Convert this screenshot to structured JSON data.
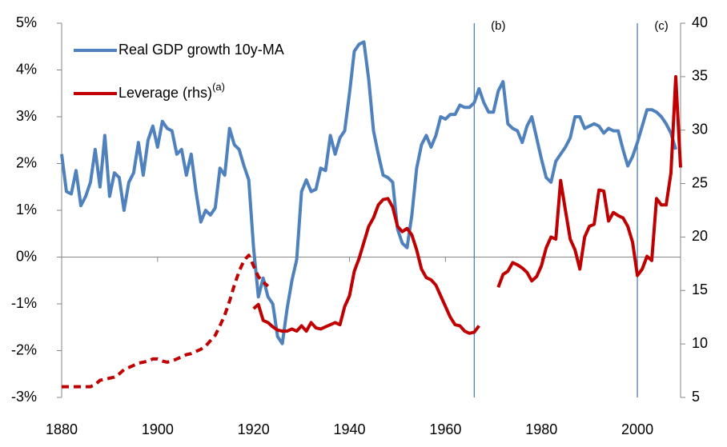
{
  "chart_data": {
    "type": "line",
    "x": [
      1880,
      1881,
      1882,
      1883,
      1884,
      1885,
      1886,
      1887,
      1888,
      1889,
      1890,
      1891,
      1892,
      1893,
      1894,
      1895,
      1896,
      1897,
      1898,
      1899,
      1900,
      1901,
      1902,
      1903,
      1904,
      1905,
      1906,
      1907,
      1908,
      1909,
      1910,
      1911,
      1912,
      1913,
      1914,
      1915,
      1916,
      1917,
      1918,
      1919,
      1920,
      1921,
      1922,
      1923,
      1924,
      1925,
      1926,
      1927,
      1928,
      1929,
      1930,
      1931,
      1932,
      1933,
      1934,
      1935,
      1936,
      1937,
      1938,
      1939,
      1940,
      1941,
      1942,
      1943,
      1944,
      1945,
      1946,
      1947,
      1948,
      1949,
      1950,
      1951,
      1952,
      1953,
      1954,
      1955,
      1956,
      1957,
      1958,
      1959,
      1960,
      1961,
      1962,
      1963,
      1964,
      1965,
      1966,
      1967,
      1968,
      1969,
      1970,
      1971,
      1972,
      1973,
      1974,
      1975,
      1976,
      1977,
      1978,
      1979,
      1980,
      1981,
      1982,
      1983,
      1984,
      1985,
      1986,
      1987,
      1988,
      1989,
      1990,
      1991,
      1992,
      1993,
      1994,
      1995,
      1996,
      1997,
      1998,
      1999,
      2000,
      2001,
      2002,
      2003,
      2004,
      2005,
      2006,
      2007,
      2008,
      2009
    ],
    "series": [
      {
        "name": "Real GDP growth 10y-MA",
        "color": "#4f81bd",
        "axis": "y",
        "values": [
          2.2,
          1.4,
          1.35,
          1.85,
          1.1,
          1.3,
          1.6,
          2.3,
          1.5,
          2.6,
          1.3,
          1.8,
          1.7,
          1.0,
          1.6,
          1.8,
          2.45,
          1.75,
          2.5,
          2.8,
          2.35,
          2.9,
          2.75,
          2.7,
          2.2,
          2.3,
          1.75,
          2.2,
          1.4,
          0.75,
          1.0,
          0.9,
          1.05,
          1.9,
          1.75,
          2.75,
          2.4,
          2.3,
          1.95,
          1.65,
          0.2,
          -0.85,
          -0.45,
          -0.85,
          -1.0,
          -1.7,
          -1.85,
          -1.1,
          -0.5,
          -0.05,
          1.4,
          1.65,
          1.4,
          1.45,
          1.9,
          1.85,
          2.6,
          2.2,
          2.55,
          2.7,
          3.5,
          4.4,
          4.55,
          4.6,
          3.8,
          2.7,
          2.2,
          1.75,
          1.7,
          1.6,
          0.6,
          0.3,
          0.2,
          0.9,
          1.9,
          2.4,
          2.6,
          2.35,
          2.6,
          3.0,
          2.95,
          3.05,
          3.05,
          3.25,
          3.2,
          3.2,
          3.3,
          3.6,
          3.3,
          3.1,
          3.1,
          3.55,
          3.75,
          2.85,
          2.75,
          2.7,
          2.45,
          2.8,
          3.0,
          2.55,
          2.1,
          1.7,
          1.6,
          2.05,
          2.2,
          2.35,
          2.55,
          3.0,
          3.0,
          2.75,
          2.8,
          2.85,
          2.8,
          2.65,
          2.75,
          2.7,
          2.7,
          2.3,
          1.95,
          2.15,
          2.45,
          2.8,
          3.15,
          3.15,
          3.1,
          3.0,
          2.85,
          2.65,
          2.3,
          null
        ]
      },
      {
        "color": "#c00000",
        "axis": "y2",
        "dash": "9 6",
        "legend": false,
        "values": [
          6.0,
          6.0,
          6.0,
          6.0,
          6.0,
          6.0,
          6.0,
          6.2,
          6.6,
          6.7,
          6.8,
          6.9,
          7.2,
          7.6,
          7.8,
          8.0,
          8.2,
          8.3,
          8.4,
          8.6,
          8.6,
          8.4,
          8.3,
          8.4,
          8.6,
          8.8,
          9.0,
          9.1,
          9.3,
          9.5,
          9.8,
          10.3,
          10.8,
          11.7,
          12.7,
          14.0,
          15.5,
          16.8,
          17.8,
          18.3,
          17.3,
          16.3,
          15.8,
          15.4,
          null,
          null,
          null,
          null,
          null,
          null,
          null,
          null,
          null,
          null,
          null,
          null,
          null,
          null,
          null,
          null,
          null,
          null,
          null,
          null,
          null,
          null,
          null,
          null,
          null,
          null,
          null,
          null,
          null,
          null,
          null,
          null,
          null,
          null,
          null,
          null,
          null,
          null,
          null,
          null,
          null,
          null,
          null,
          null,
          null,
          null,
          null,
          null,
          null,
          null,
          null,
          null,
          null,
          null,
          null,
          null,
          null,
          null,
          null,
          null,
          null,
          null,
          null,
          null,
          null,
          null,
          null,
          null,
          null,
          null,
          null,
          null,
          null,
          null,
          null,
          null,
          null,
          null,
          null,
          null,
          null,
          null,
          null,
          null,
          null,
          null
        ]
      },
      {
        "name": "Leverage (rhs)",
        "note": "(a)",
        "color": "#c00000",
        "axis": "y2",
        "values": [
          null,
          null,
          null,
          null,
          null,
          null,
          null,
          null,
          null,
          null,
          null,
          null,
          null,
          null,
          null,
          null,
          null,
          null,
          null,
          null,
          null,
          null,
          null,
          null,
          null,
          null,
          null,
          null,
          null,
          null,
          null,
          null,
          null,
          null,
          null,
          null,
          null,
          null,
          null,
          null,
          13.3,
          13.7,
          12.2,
          12.0,
          11.6,
          11.3,
          11.2,
          11.2,
          11.4,
          11.2,
          11.7,
          11.2,
          12.0,
          11.5,
          11.4,
          11.6,
          11.8,
          12.0,
          11.8,
          13.5,
          14.5,
          16.8,
          18.0,
          19.5,
          21.0,
          21.8,
          23.0,
          23.5,
          23.6,
          22.8,
          21.0,
          20.5,
          20.8,
          20.2,
          18.8,
          17.0,
          16.2,
          16.0,
          15.5,
          14.5,
          13.5,
          12.5,
          11.8,
          11.7,
          11.2,
          11.0,
          11.1,
          11.7,
          null,
          null,
          null,
          15.3,
          16.5,
          16.8,
          17.6,
          17.4,
          17.1,
          16.7,
          15.9,
          16.3,
          17.3,
          19.0,
          20.0,
          19.8,
          25.3,
          22.5,
          19.8,
          18.8,
          17.0,
          20.0,
          21.0,
          21.2,
          24.4,
          24.3,
          21.5,
          22.3,
          22.0,
          21.8,
          21.0,
          19.5,
          16.4,
          17.0,
          18.2,
          17.8,
          23.6,
          23.0,
          23.0,
          26.0,
          35.0,
          26.5
        ]
      }
    ],
    "xlim": [
      1880,
      2009
    ],
    "xticks": [
      1880,
      1900,
      1920,
      1940,
      1960,
      1980,
      2000
    ],
    "ylim": [
      -3,
      5
    ],
    "yticks": [
      {
        "value": -3,
        "label": "-3%"
      },
      {
        "value": -2,
        "label": "-2%"
      },
      {
        "value": -1,
        "label": "-1%"
      },
      {
        "value": 0,
        "label": "0%"
      },
      {
        "value": 1,
        "label": "1%"
      },
      {
        "value": 2,
        "label": "2%"
      },
      {
        "value": 3,
        "label": "3%"
      },
      {
        "value": 4,
        "label": "4%"
      },
      {
        "value": 5,
        "label": "5%"
      }
    ],
    "y2lim": [
      5,
      40
    ],
    "y2ticks": [
      5,
      10,
      15,
      20,
      25,
      30,
      35,
      40
    ],
    "annotations": [
      {
        "x": 1966,
        "label": "(b)"
      },
      {
        "x": 2000,
        "label": "(c)"
      }
    ],
    "annotation_color": "#4f81bd"
  }
}
